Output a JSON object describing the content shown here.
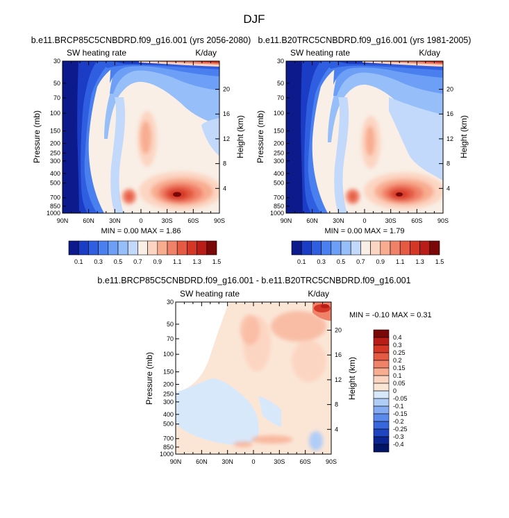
{
  "page": {
    "title": "DJF"
  },
  "panels": [
    {
      "id": "p1",
      "title": "b.e11.BRCP85C5CNBDRD.f09_g16.001 (yrs 2056-2080)",
      "left_label": "SW heating rate",
      "right_label": "K/day",
      "stats": "MIN =   0.00  MAX =   1.86",
      "ylabel": "Pressure (mb)",
      "y2label": "Height (km)"
    },
    {
      "id": "p2",
      "title": "b.e11.B20TRC5CNBDRD.f09_g16.001 (yrs 1981-2005)",
      "left_label": "SW heating rate",
      "right_label": "K/day",
      "stats": "MIN =   0.00  MAX =   1.79",
      "ylabel": "Pressure (mb)",
      "y2label": "Height (km)"
    },
    {
      "id": "p3",
      "title": "b.e11.BRCP85C5CNBDRD.f09_g16.001 - b.e11.B20TRC5CNBDRD.f09_g16.001",
      "left_label": "SW heating rate",
      "right_label": "K/day",
      "stats": "MIN = -0.10  MAX =   0.31",
      "ylabel": "Pressure (mb)",
      "y2label": "Height (km)"
    }
  ],
  "chart_data": [
    {
      "type": "heatmap",
      "title": "b.e11.BRCP85C5CNBDRD.f09_g16.001 (yrs 2056-2080)",
      "xlabel": "",
      "ylabel": "Pressure (mb)",
      "y2label": "Height (km)",
      "xlim": [
        90,
        -90
      ],
      "ylim": [
        1000,
        30
      ],
      "x_ticks": [
        90,
        60,
        30,
        0,
        -30,
        -60,
        -90
      ],
      "x_tick_labels": [
        "90N",
        "60N",
        "30N",
        "0",
        "30S",
        "60S",
        "90S"
      ],
      "y_ticks": [
        30,
        50,
        70,
        100,
        150,
        200,
        250,
        300,
        400,
        500,
        700,
        850,
        1000
      ],
      "y_tick_labels": [
        "30",
        "50",
        "70",
        "100",
        "150",
        "200",
        "250",
        "300",
        "400",
        "500",
        "700",
        "850",
        "1000"
      ],
      "y2_ticks": [
        20,
        16,
        12,
        8,
        4
      ],
      "y2_tick_labels": [
        "20",
        "16",
        "12",
        "8",
        "4"
      ],
      "min": 0.0,
      "max": 1.86,
      "levels": [
        0.1,
        0.2,
        0.3,
        0.4,
        0.5,
        0.6,
        0.7,
        0.8,
        0.9,
        1.0,
        1.1,
        1.2,
        1.3,
        1.4,
        1.5
      ],
      "colorbar_labels": [
        "0.1",
        "0.3",
        "0.5",
        "0.7",
        "0.9",
        "1.1",
        "1.3",
        "1.5"
      ]
    },
    {
      "type": "heatmap",
      "title": "b.e11.B20TRC5CNBDRD.f09_g16.001 (yrs 1981-2005)",
      "xlabel": "",
      "ylabel": "Pressure (mb)",
      "y2label": "Height (km)",
      "xlim": [
        90,
        -90
      ],
      "ylim": [
        1000,
        30
      ],
      "x_ticks": [
        90,
        60,
        30,
        0,
        -30,
        -60,
        -90
      ],
      "x_tick_labels": [
        "90N",
        "60N",
        "30N",
        "0",
        "30S",
        "60S",
        "90S"
      ],
      "y_ticks": [
        30,
        50,
        70,
        100,
        150,
        200,
        250,
        300,
        400,
        500,
        700,
        850,
        1000
      ],
      "y_tick_labels": [
        "30",
        "50",
        "70",
        "100",
        "150",
        "200",
        "250",
        "300",
        "400",
        "500",
        "700",
        "850",
        "1000"
      ],
      "y2_ticks": [
        20,
        16,
        12,
        8,
        4
      ],
      "y2_tick_labels": [
        "20",
        "16",
        "12",
        "8",
        "4"
      ],
      "min": 0.0,
      "max": 1.79,
      "levels": [
        0.1,
        0.2,
        0.3,
        0.4,
        0.5,
        0.6,
        0.7,
        0.8,
        0.9,
        1.0,
        1.1,
        1.2,
        1.3,
        1.4,
        1.5
      ],
      "colorbar_labels": [
        "0.1",
        "0.3",
        "0.5",
        "0.7",
        "0.9",
        "1.1",
        "1.3",
        "1.5"
      ]
    },
    {
      "type": "heatmap",
      "title": "b.e11.BRCP85C5CNBDRD.f09_g16.001 - b.e11.B20TRC5CNBDRD.f09_g16.001",
      "xlabel": "",
      "ylabel": "Pressure (mb)",
      "y2label": "Height (km)",
      "xlim": [
        90,
        -90
      ],
      "ylim": [
        1000,
        30
      ],
      "x_ticks": [
        90,
        60,
        30,
        0,
        -30,
        -60,
        -90
      ],
      "x_tick_labels": [
        "90N",
        "60N",
        "30N",
        "0",
        "30S",
        "60S",
        "90S"
      ],
      "y_ticks": [
        30,
        50,
        70,
        100,
        150,
        200,
        250,
        300,
        400,
        500,
        700,
        850,
        1000
      ],
      "y_tick_labels": [
        "30",
        "50",
        "70",
        "100",
        "150",
        "200",
        "250",
        "300",
        "400",
        "500",
        "700",
        "850",
        "1000"
      ],
      "y2_ticks": [
        20,
        16,
        12,
        8,
        4
      ],
      "y2_tick_labels": [
        "20",
        "16",
        "12",
        "8",
        "4"
      ],
      "min": -0.1,
      "max": 0.31,
      "levels": [
        -0.4,
        -0.3,
        -0.25,
        -0.2,
        -0.15,
        -0.1,
        -0.05,
        0,
        0.05,
        0.1,
        0.15,
        0.2,
        0.25,
        0.3,
        0.4
      ],
      "colorbar_labels": [
        "0.4",
        "0.3",
        "0.25",
        "0.2",
        "0.15",
        "0.1",
        "0.05",
        "0",
        "-0.05",
        "-0.1",
        "-0.15",
        "-0.2",
        "-0.25",
        "-0.3",
        "-0.4"
      ]
    }
  ],
  "colors": {
    "abs_scale": [
      "#0d1a8c",
      "#1b3cc4",
      "#2f5fe0",
      "#4a7ff0",
      "#6c9ff5",
      "#96bef8",
      "#c3d9fb",
      "#f9efe6",
      "#fcd5c2",
      "#f8ad91",
      "#f1826a",
      "#e45a43",
      "#d43726",
      "#b81d17",
      "#7a0808"
    ],
    "diff_scale": [
      "#7a0808",
      "#b81d17",
      "#d43726",
      "#e45a43",
      "#f1826a",
      "#f8ad91",
      "#fcd5c2",
      "#fbe6d6",
      "#d8e8fb",
      "#b0cdf7",
      "#85acf2",
      "#5b8aec",
      "#3866dc",
      "#1f45c0",
      "#0c2590",
      "#041466"
    ]
  }
}
